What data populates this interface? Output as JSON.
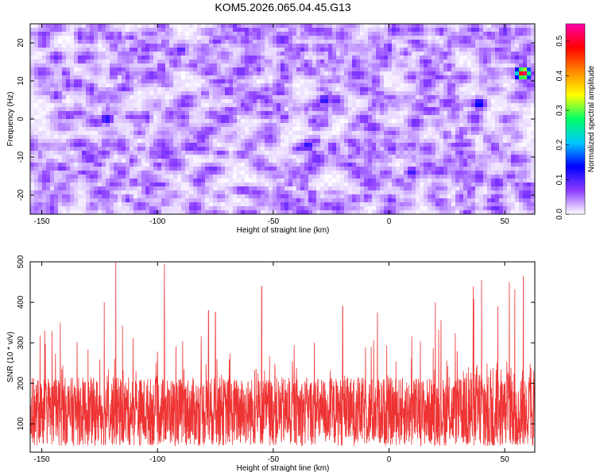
{
  "title": "KOM5.2026.065.04.45.G13",
  "chart_data": [
    {
      "type": "heatmap",
      "xlabel": "Height of straight line (km)",
      "ylabel": "Frequency (Hz)",
      "xlim": [
        -155,
        63
      ],
      "ylim": [
        -25,
        25
      ],
      "xticks": [
        -150,
        -100,
        -50,
        0,
        50
      ],
      "yticks": [
        -20,
        -10,
        0,
        10,
        20
      ],
      "colorbar": {
        "label": "Normalized spectral amplitude",
        "range": [
          0.0,
          0.55
        ],
        "ticks": [
          0.0,
          0.1,
          0.2,
          0.3,
          0.4,
          0.5
        ],
        "colors": [
          "#ffffff",
          "#8c3cff",
          "#0000ff",
          "#00c8ff",
          "#00ff66",
          "#ffff00",
          "#ff8800",
          "#ff0000",
          "#ff00aa"
        ]
      },
      "hotspots": [
        {
          "x": 58,
          "y": 12,
          "value": 0.55
        },
        {
          "x": 39,
          "y": 4,
          "value": 0.15
        },
        {
          "x": -122,
          "y": 0,
          "value": 0.13
        },
        {
          "x": -35,
          "y": -7,
          "value": 0.12
        },
        {
          "x": -28,
          "y": 5,
          "value": 0.12
        },
        {
          "x": 10,
          "y": -14,
          "value": 0.11
        },
        {
          "x": -90,
          "y": 18,
          "value": 0.1
        }
      ]
    },
    {
      "type": "line",
      "xlabel": "Height of straight line (km)",
      "ylabel": "SNR (10 * v/v)",
      "xlim": [
        -155,
        63
      ],
      "ylim": [
        30,
        500
      ],
      "xticks": [
        -150,
        -100,
        -50,
        0,
        50
      ],
      "yticks": [
        100,
        200,
        300,
        400,
        500
      ],
      "series": [
        {
          "color": "#ee3333",
          "baseline": 130,
          "peaks": [
            {
              "x": -118,
              "y": 500
            },
            {
              "x": -97,
              "y": 495
            },
            {
              "x": -123,
              "y": 400
            },
            {
              "x": 40,
              "y": 455
            },
            {
              "x": 52,
              "y": 450
            },
            {
              "x": 58,
              "y": 465
            },
            {
              "x": -55,
              "y": 440
            },
            {
              "x": -78,
              "y": 380
            },
            {
              "x": -142,
              "y": 350
            },
            {
              "x": -75,
              "y": 375
            },
            {
              "x": 20,
              "y": 400
            },
            {
              "x": 47,
              "y": 390
            },
            {
              "x": -20,
              "y": 390
            },
            {
              "x": -5,
              "y": 375
            }
          ]
        }
      ]
    }
  ]
}
